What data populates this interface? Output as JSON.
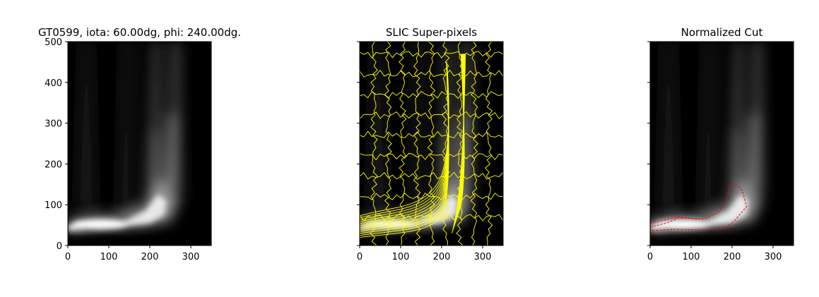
{
  "figure": {
    "panels": [
      {
        "title": "GT0599, iota: 60.00dg, phi: 240.00dg.",
        "overlay": "none"
      },
      {
        "title": "SLIC Super-pixels",
        "overlay": "slic"
      },
      {
        "title": "Normalized Cut",
        "overlay": "ncut"
      }
    ]
  },
  "chart_data": [
    {
      "type": "heatmap",
      "title": "GT0599, iota: 60.00dg, phi: 240.00dg.",
      "xlabel": "",
      "ylabel": "",
      "xlim": [
        0,
        350
      ],
      "ylim": [
        0,
        500
      ],
      "xticks": [
        0,
        100,
        200,
        300
      ],
      "yticks": [
        0,
        100,
        200,
        300,
        400,
        500
      ],
      "colormap": "gray",
      "grid": false
    },
    {
      "type": "heatmap",
      "title": "SLIC Super-pixels",
      "xlabel": "",
      "ylabel": "",
      "xlim": [
        0,
        350
      ],
      "ylim": [
        0,
        500
      ],
      "xticks": [
        0,
        100,
        200,
        300
      ],
      "yticks": [
        0,
        100,
        200,
        300,
        400,
        500
      ],
      "colormap": "gray",
      "overlay_color": "#ffff00",
      "grid": false
    },
    {
      "type": "heatmap",
      "title": "Normalized Cut",
      "xlabel": "",
      "ylabel": "",
      "xlim": [
        0,
        350
      ],
      "ylim": [
        0,
        500
      ],
      "xticks": [
        0,
        100,
        200,
        300
      ],
      "yticks": [
        0,
        100,
        200,
        300,
        400,
        500
      ],
      "colormap": "gray",
      "overlay_color": "#ff0000",
      "grid": false
    }
  ]
}
